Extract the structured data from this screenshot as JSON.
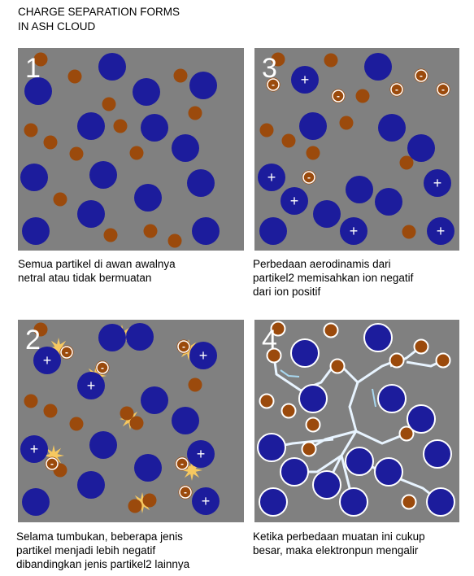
{
  "title": {
    "lines": [
      "CHARGE SEPARATION FORMS",
      "IN ASH CLOUD"
    ]
  },
  "signs": {
    "plus": "+",
    "minus": "-"
  },
  "panels": [
    {
      "number": "1",
      "caption": [
        "Semua partikel di awan awalnya",
        "netral atau tidak bermuatan"
      ]
    },
    {
      "number": "3",
      "caption": [
        "Perbedaan aerodinamis dari",
        "partikel2 memisahkan ion negatif",
        "dari ion positif"
      ]
    },
    {
      "number": "2",
      "caption": [
        "Selama tumbukan, beberapa jenis",
        "partikel menjadi lebih negatif",
        "dibandingkan jenis partikel2 lainnya"
      ]
    },
    {
      "number": "4",
      "caption": [
        "Ketika perbedaan muatan ini cukup",
        "besar, maka elektronpun mengalir"
      ]
    }
  ]
}
